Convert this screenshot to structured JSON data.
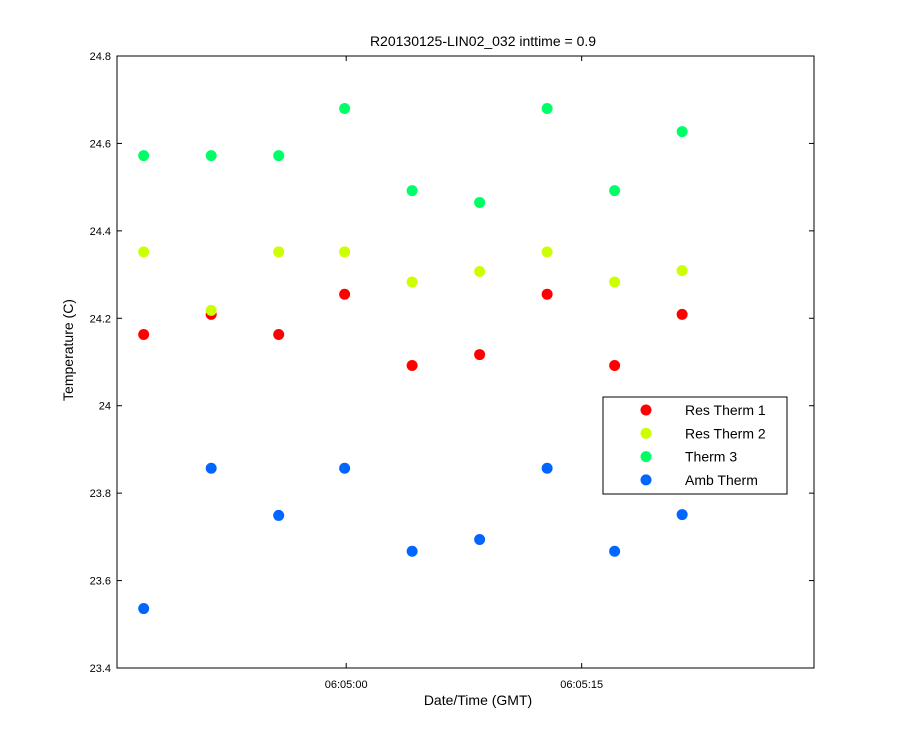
{
  "chart_data": {
    "type": "scatter",
    "title": "R20130125-LIN02_032 inttime = 0.9",
    "xlabel": "Date/Time (GMT)",
    "ylabel": "Temperature (C)",
    "x_unit": "time (hh:mm:ss)",
    "xlim": [
      "06:04:45.4",
      "06:05:29.8"
    ],
    "ylim": [
      23.4,
      24.8
    ],
    "x_ticks": [
      {
        "value": "06:05:00",
        "label": "06:05:00"
      },
      {
        "value": "06:05:15",
        "label": "06:05:15"
      }
    ],
    "y_ticks": [
      {
        "value": 23.4,
        "label": "23.4"
      },
      {
        "value": 23.6,
        "label": "23.6"
      },
      {
        "value": 23.8,
        "label": "23.8"
      },
      {
        "value": 24.0,
        "label": "24"
      },
      {
        "value": 24.2,
        "label": "24.2"
      },
      {
        "value": 24.4,
        "label": "24.4"
      },
      {
        "value": 24.6,
        "label": "24.6"
      },
      {
        "value": 24.8,
        "label": "24.8"
      }
    ],
    "x": [
      "06:04:47.1",
      "06:04:51.4",
      "06:04:55.7",
      "06:04:59.9",
      "06:05:04.2",
      "06:05:08.5",
      "06:05:12.8",
      "06:05:17.1",
      "06:05:21.4"
    ],
    "series": [
      {
        "name": "Res Therm 1",
        "color": "#ff0000",
        "values": [
          24.163,
          24.209,
          24.163,
          24.255,
          24.092,
          24.117,
          24.255,
          24.092,
          24.209
        ]
      },
      {
        "name": "Res Therm 2",
        "color": "#ccff00",
        "values": [
          24.352,
          24.218,
          24.352,
          24.352,
          24.283,
          24.307,
          24.352,
          24.283,
          24.309
        ]
      },
      {
        "name": "Therm 3",
        "color": "#00ff66",
        "values": [
          24.572,
          24.572,
          24.572,
          24.68,
          24.492,
          24.465,
          24.68,
          24.492,
          24.627
        ]
      },
      {
        "name": "Amb Therm",
        "color": "#0066ff",
        "values": [
          23.536,
          23.857,
          23.749,
          23.857,
          23.667,
          23.694,
          23.857,
          23.667,
          23.751
        ]
      }
    ],
    "grid": false,
    "legend_position": "right"
  }
}
